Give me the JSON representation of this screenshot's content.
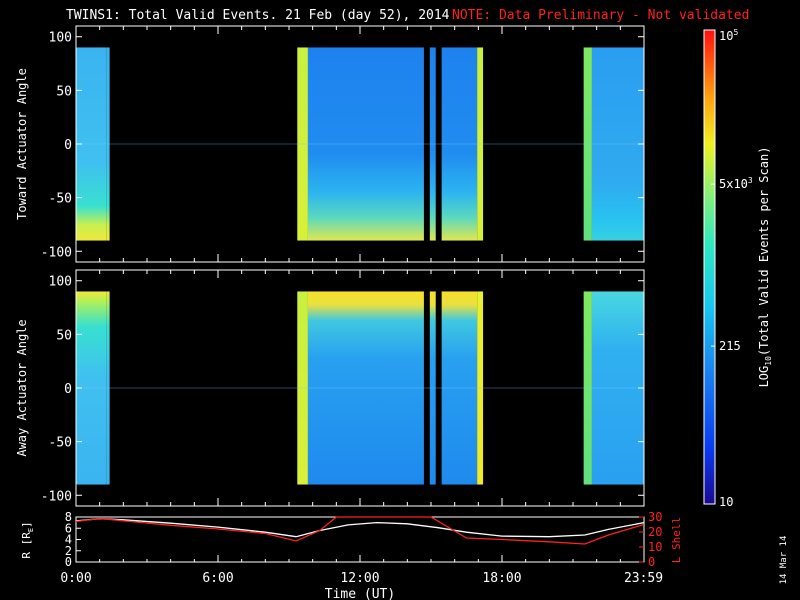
{
  "header": {
    "title": "TWINS1: Total Valid Events. 21 Feb (day  52), 2014",
    "note": "NOTE: Data Preliminary - Not validated"
  },
  "colors": {
    "background": "#000000",
    "axis": "#ffffff",
    "orbit_r": "#ffffff",
    "orbit_l": "#ff2020",
    "note": "#ff2020"
  },
  "colorbar": {
    "label": "LOG10(Total Valid Events per Scan)",
    "label_main": "LOG",
    "label_sub": "10",
    "label_rest": "(Total Valid Events per Scan)",
    "ticks": [
      {
        "base": "10",
        "exp": "",
        "value": 10
      },
      {
        "base": "215",
        "exp": "",
        "value": 215
      },
      {
        "base": "5x10",
        "exp": "3",
        "value": 5000
      },
      {
        "base": "10",
        "exp": "5",
        "value": 100000
      }
    ],
    "range": [
      10,
      100000
    ],
    "scale": "log"
  },
  "stamp": "14 Mar 14",
  "chart_data": [
    {
      "type": "heatmap",
      "panel": "toward",
      "ylabel": "Toward Actuator Angle",
      "xlim": [
        "00:00",
        "23:59"
      ],
      "ylim": [
        -110,
        110
      ],
      "yticks": [
        "100",
        "50",
        "0",
        "-50",
        "-100"
      ],
      "data_extent_y": [
        -90,
        90
      ],
      "segments": [
        {
          "start_h": 0.0,
          "end_h": 1.3,
          "level": "cyan",
          "note": "yellow band near -85"
        },
        {
          "start_h": 1.3,
          "end_h": 1.42,
          "level": "cyan"
        },
        {
          "start_h": 9.35,
          "end_h": 9.8,
          "level": "yellow-green"
        },
        {
          "start_h": 9.8,
          "end_h": 14.7,
          "level": "blue",
          "note": "yellow band near -80 fading later"
        },
        {
          "start_h": 14.95,
          "end_h": 15.2,
          "level": "blue"
        },
        {
          "start_h": 15.45,
          "end_h": 16.95,
          "level": "blue"
        },
        {
          "start_h": 16.95,
          "end_h": 17.2,
          "level": "yellow-green"
        },
        {
          "start_h": 21.45,
          "end_h": 21.8,
          "level": "green"
        },
        {
          "start_h": 21.8,
          "end_h": 23.99,
          "level": "cyan"
        }
      ]
    },
    {
      "type": "heatmap",
      "panel": "away",
      "ylabel": "Away Actuator Angle",
      "xlim": [
        "00:00",
        "23:59"
      ],
      "ylim": [
        -110,
        110
      ],
      "yticks": [
        "100",
        "50",
        "0",
        "-50",
        "-100"
      ],
      "data_extent_y": [
        -90,
        90
      ],
      "segments": [
        {
          "start_h": 0.0,
          "end_h": 1.3,
          "level": "cyan",
          "note": "yellow band near +85"
        },
        {
          "start_h": 1.3,
          "end_h": 1.42,
          "level": "cyan"
        },
        {
          "start_h": 9.35,
          "end_h": 9.8,
          "level": "yellow-green"
        },
        {
          "start_h": 9.8,
          "end_h": 14.7,
          "level": "blue",
          "note": "yellow band near +85"
        },
        {
          "start_h": 14.95,
          "end_h": 15.2,
          "level": "blue"
        },
        {
          "start_h": 15.45,
          "end_h": 16.95,
          "level": "blue"
        },
        {
          "start_h": 16.95,
          "end_h": 17.2,
          "level": "yellow"
        },
        {
          "start_h": 21.45,
          "end_h": 21.8,
          "level": "green"
        },
        {
          "start_h": 21.8,
          "end_h": 23.99,
          "level": "cyan"
        }
      ]
    },
    {
      "type": "line",
      "panel": "orbit",
      "xlabel": "Time (UT)",
      "xticks": [
        "0:00",
        "6:00",
        "12:00",
        "18:00",
        "23:59"
      ],
      "ylabel_left": "R [RE]",
      "ylabel_left_main": "R [R",
      "ylabel_left_sub": "E",
      "ylabel_left_end": "]",
      "ylabel_right": "L Shell",
      "ylim_left": [
        0,
        8
      ],
      "ylim_right": [
        0,
        30
      ],
      "yticks_left": [
        "8",
        "6",
        "4",
        "2",
        "0"
      ],
      "yticks_right": [
        "30",
        "20",
        "10",
        "0"
      ],
      "series": [
        {
          "name": "R [RE]",
          "axis": "left",
          "x": [
            0.0,
            1.0,
            2.0,
            4.0,
            6.0,
            8.0,
            9.3,
            10.3,
            11.5,
            12.7,
            14.0,
            15.3,
            16.5,
            18.0,
            20.0,
            21.5,
            22.5,
            23.99
          ],
          "y": [
            7.3,
            7.7,
            7.5,
            6.9,
            6.2,
            5.3,
            4.5,
            5.6,
            6.6,
            7.0,
            6.8,
            6.1,
            5.3,
            4.6,
            4.5,
            4.8,
            5.8,
            7.0
          ]
        },
        {
          "name": "L Shell",
          "axis": "right",
          "x": [
            0.0,
            1.0,
            2.0,
            4.0,
            6.0,
            8.0,
            9.3,
            10.3,
            11.0,
            15.0,
            16.5,
            18.0,
            20.0,
            21.5,
            22.5,
            23.99
          ],
          "y": [
            27,
            29,
            27.5,
            24.5,
            22,
            19,
            14,
            21,
            30,
            30,
            16,
            15,
            13.5,
            12,
            18,
            25
          ]
        }
      ]
    }
  ]
}
